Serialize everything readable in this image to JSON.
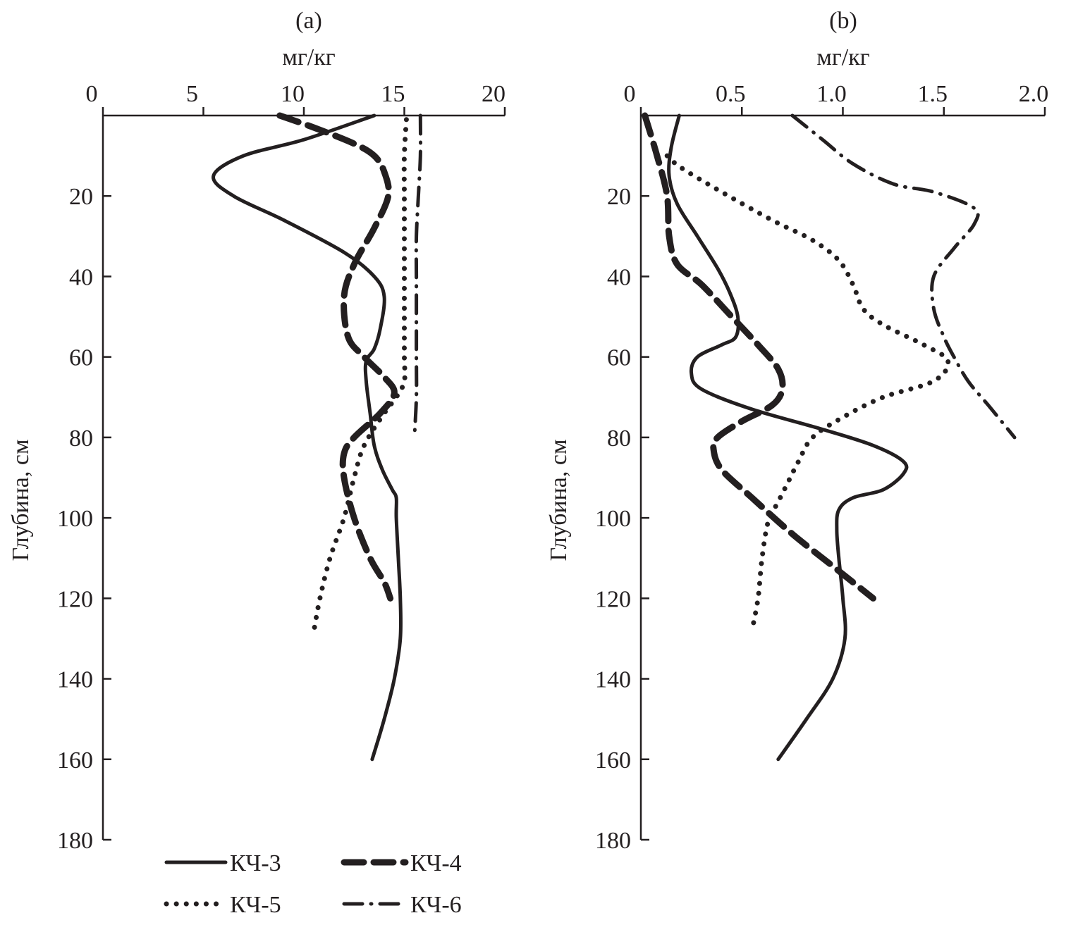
{
  "chart_data": [
    {
      "type": "line",
      "panel_label": "(a)",
      "xlabel": "мг/кг",
      "ylabel": "Глубина, см",
      "xlim": [
        0,
        20
      ],
      "ylim": [
        0,
        180
      ],
      "x_axis_position": "top",
      "y_inverted": true,
      "x_ticks": [
        "0",
        "5",
        "10",
        "15",
        "20"
      ],
      "y_ticks": [
        "20",
        "40",
        "60",
        "80",
        "100",
        "120",
        "140",
        "160",
        "180"
      ],
      "grid": false,
      "series": [
        {
          "name": "КЧ-3",
          "style": "solid",
          "points": [
            [
              13.5,
              0
            ],
            [
              10,
              6
            ],
            [
              7,
              10
            ],
            [
              5.5,
              15
            ],
            [
              6.5,
              20
            ],
            [
              9,
              26
            ],
            [
              12,
              34
            ],
            [
              13.5,
              40
            ],
            [
              14,
              45
            ],
            [
              13.8,
              53
            ],
            [
              13.5,
              58
            ],
            [
              13.1,
              61
            ],
            [
              13.1,
              66
            ],
            [
              13.3,
              74
            ],
            [
              13.5,
              82
            ],
            [
              13.9,
              88
            ],
            [
              14.4,
              93
            ],
            [
              14.6,
              95
            ],
            [
              14.6,
              100
            ],
            [
              14.7,
              110
            ],
            [
              14.8,
              120
            ],
            [
              14.8,
              130
            ],
            [
              14.5,
              140
            ],
            [
              14.0,
              150
            ],
            [
              13.4,
              160
            ]
          ]
        },
        {
          "name": "КЧ-4",
          "style": "dashed",
          "points": [
            [
              8.8,
              0
            ],
            [
              10.5,
              3
            ],
            [
              12.5,
              7
            ],
            [
              13.5,
              10
            ],
            [
              14,
              14
            ],
            [
              14.2,
              20
            ],
            [
              13.5,
              28
            ],
            [
              12.5,
              37
            ],
            [
              12,
              45
            ],
            [
              12.2,
              55
            ],
            [
              13,
              60
            ],
            [
              14,
              65
            ],
            [
              14.5,
              69
            ],
            [
              13.8,
              74
            ],
            [
              12.5,
              80
            ],
            [
              12,
              84
            ],
            [
              12,
              90
            ],
            [
              12.5,
              100
            ],
            [
              13.3,
              110
            ],
            [
              14,
              116
            ],
            [
              14.3,
              120
            ]
          ]
        },
        {
          "name": "КЧ-5",
          "style": "dotted",
          "points": [
            [
              15.1,
              1
            ],
            [
              15.0,
              10
            ],
            [
              15.0,
              20
            ],
            [
              15.0,
              30
            ],
            [
              15.0,
              40
            ],
            [
              15.0,
              50
            ],
            [
              15.0,
              60
            ],
            [
              15.0,
              66
            ],
            [
              14.6,
              70
            ],
            [
              14.0,
              74
            ],
            [
              13.0,
              82
            ],
            [
              12.5,
              90
            ],
            [
              12.0,
              100
            ],
            [
              11.3,
              110
            ],
            [
              10.8,
              120
            ],
            [
              10.5,
              128
            ]
          ]
        },
        {
          "name": "КЧ-6",
          "style": "dash-dot",
          "points": [
            [
              15.8,
              0
            ],
            [
              15.8,
              10
            ],
            [
              15.7,
              20
            ],
            [
              15.6,
              30
            ],
            [
              15.6,
              40
            ],
            [
              15.6,
              50
            ],
            [
              15.6,
              60
            ],
            [
              15.6,
              70
            ],
            [
              15.5,
              80
            ]
          ]
        }
      ],
      "legend": {
        "placement": "bottom-center",
        "columns": 2
      }
    },
    {
      "type": "line",
      "panel_label": "(b)",
      "xlabel": "мг/кг",
      "ylabel": "Глубина, см",
      "xlim": [
        0,
        2.0
      ],
      "ylim": [
        0,
        180
      ],
      "x_axis_position": "top",
      "y_inverted": true,
      "x_ticks": [
        "0",
        "0.5",
        "1.0",
        "1.5",
        "2.0"
      ],
      "y_ticks": [
        "20",
        "40",
        "60",
        "80",
        "100",
        "120",
        "140",
        "160",
        "180"
      ],
      "grid": false,
      "series": [
        {
          "name": "КЧ-3",
          "style": "solid",
          "points": [
            [
              0.19,
              0
            ],
            [
              0.15,
              8
            ],
            [
              0.14,
              15
            ],
            [
              0.18,
              22
            ],
            [
              0.28,
              30
            ],
            [
              0.38,
              38
            ],
            [
              0.44,
              44
            ],
            [
              0.48,
              50
            ],
            [
              0.47,
              55
            ],
            [
              0.4,
              57
            ],
            [
              0.28,
              60
            ],
            [
              0.25,
              64
            ],
            [
              0.3,
              68
            ],
            [
              0.55,
              73
            ],
            [
              0.9,
              78
            ],
            [
              1.15,
              82
            ],
            [
              1.3,
              86
            ],
            [
              1.3,
              89
            ],
            [
              1.2,
              93
            ],
            [
              1.05,
              95
            ],
            [
              0.98,
              98
            ],
            [
              0.97,
              103
            ],
            [
              0.98,
              110
            ],
            [
              1.0,
              120
            ],
            [
              1.01,
              130
            ],
            [
              0.95,
              140
            ],
            [
              0.82,
              150
            ],
            [
              0.68,
              160
            ]
          ]
        },
        {
          "name": "КЧ-4",
          "style": "dashed",
          "points": [
            [
              0.02,
              0
            ],
            [
              0.08,
              10
            ],
            [
              0.13,
              20
            ],
            [
              0.14,
              30
            ],
            [
              0.18,
              37
            ],
            [
              0.3,
              42
            ],
            [
              0.45,
              50
            ],
            [
              0.58,
              57
            ],
            [
              0.68,
              63
            ],
            [
              0.7,
              68
            ],
            [
              0.65,
              72
            ],
            [
              0.5,
              76
            ],
            [
              0.38,
              80
            ],
            [
              0.36,
              83
            ],
            [
              0.4,
              88
            ],
            [
              0.55,
              95
            ],
            [
              0.75,
              104
            ],
            [
              0.95,
              112
            ],
            [
              1.1,
              118
            ],
            [
              1.15,
              120
            ]
          ]
        },
        {
          "name": "КЧ-5",
          "style": "dotted",
          "points": [
            [
              0.13,
              10
            ],
            [
              0.2,
              13
            ],
            [
              0.4,
              19
            ],
            [
              0.65,
              26
            ],
            [
              0.85,
              31
            ],
            [
              0.98,
              36
            ],
            [
              1.05,
              42
            ],
            [
              1.1,
              48
            ],
            [
              1.2,
              52
            ],
            [
              1.4,
              57
            ],
            [
              1.52,
              61
            ],
            [
              1.45,
              66
            ],
            [
              1.2,
              70
            ],
            [
              1.0,
              75
            ],
            [
              0.85,
              80
            ],
            [
              0.78,
              86
            ],
            [
              0.73,
              91
            ],
            [
              0.68,
              96
            ],
            [
              0.63,
              101
            ],
            [
              0.6,
              110
            ],
            [
              0.58,
              120
            ],
            [
              0.55,
              128
            ]
          ]
        },
        {
          "name": "КЧ-6",
          "style": "dash-dot",
          "points": [
            [
              0.75,
              0
            ],
            [
              0.9,
              6
            ],
            [
              1.05,
              12
            ],
            [
              1.25,
              17
            ],
            [
              1.45,
              19
            ],
            [
              1.65,
              23
            ],
            [
              1.65,
              27
            ],
            [
              1.55,
              33
            ],
            [
              1.45,
              40
            ],
            [
              1.45,
              48
            ],
            [
              1.5,
              55
            ],
            [
              1.55,
              60
            ],
            [
              1.62,
              66
            ],
            [
              1.72,
              72
            ],
            [
              1.85,
              80
            ]
          ]
        }
      ]
    }
  ],
  "legend": {
    "items": [
      {
        "name": "КЧ-3",
        "style": "solid"
      },
      {
        "name": "КЧ-4",
        "style": "dashed"
      },
      {
        "name": "КЧ-5",
        "style": "dotted"
      },
      {
        "name": "КЧ-6",
        "style": "dash-dot"
      }
    ]
  }
}
